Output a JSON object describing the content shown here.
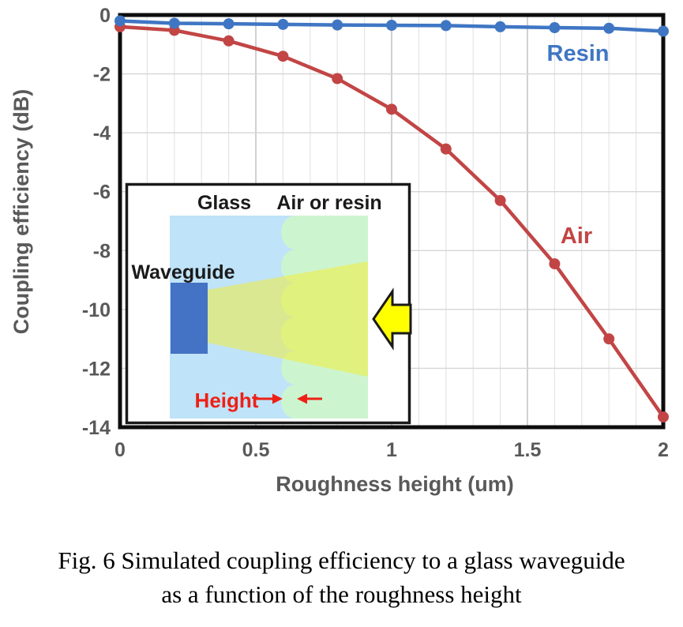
{
  "figure": {
    "caption_line1": "Fig. 6 Simulated coupling efficiency to a glass waveguide",
    "caption_line2": "as a function of the roughness height"
  },
  "chart_data": {
    "type": "line",
    "title": "",
    "xlabel": "Roughness height (um)",
    "ylabel": "Coupling efficiency (dB)",
    "xlim": [
      0,
      2
    ],
    "ylim": [
      -14,
      0
    ],
    "x": [
      0,
      0.2,
      0.4,
      0.6,
      0.8,
      1.0,
      1.2,
      1.4,
      1.6,
      1.8,
      2.0
    ],
    "series": [
      {
        "name": "Resin",
        "color": "#3f76c4",
        "values": [
          -0.2,
          -0.28,
          -0.3,
          -0.32,
          -0.34,
          -0.35,
          -0.36,
          -0.4,
          -0.43,
          -0.45,
          -0.55
        ]
      },
      {
        "name": "Air",
        "color": "#c24545",
        "values": [
          -0.4,
          -0.52,
          -0.88,
          -1.4,
          -2.16,
          -3.2,
          -4.55,
          -6.3,
          -8.45,
          -11.0,
          -13.65
        ]
      }
    ],
    "x_ticks": [
      {
        "v": 0,
        "label": "0"
      },
      {
        "v": 0.5,
        "label": "0.5"
      },
      {
        "v": 1,
        "label": "1"
      },
      {
        "v": 1.5,
        "label": "1.5"
      },
      {
        "v": 2,
        "label": "2"
      }
    ],
    "y_ticks": [
      {
        "v": 0,
        "label": "0"
      },
      {
        "v": -2,
        "label": "-2"
      },
      {
        "v": -4,
        "label": "-4"
      },
      {
        "v": -6,
        "label": "-6"
      },
      {
        "v": -8,
        "label": "-8"
      },
      {
        "v": -10,
        "label": "-10"
      },
      {
        "v": -12,
        "label": "-12"
      },
      {
        "v": -14,
        "label": "-14"
      }
    ],
    "grid": {
      "x_minor_step": 0.1,
      "x_major_step": 0.5,
      "y_step": 2,
      "minor_color": "#e4e4e4",
      "major_color": "#c8c8c8",
      "h_color": "#d6d6d6"
    },
    "colors": {
      "axis_text": "#595959",
      "plot_border": "#0d0d0d"
    },
    "legend_position": "inline-labels"
  },
  "inset": {
    "labels": {
      "glass": "Glass",
      "air_or_resin": "Air or resin",
      "waveguide": "Waveguide",
      "height": "Height"
    },
    "colors": {
      "glass_region": "#bfe3f8",
      "air_resin_region": "#ccf5cf",
      "waveguide": "#4472c4",
      "beam": "#f6ee2c",
      "block_arrow": "#ffff00",
      "height_accent": "#ee2016",
      "border": "#1a1a1a"
    }
  }
}
